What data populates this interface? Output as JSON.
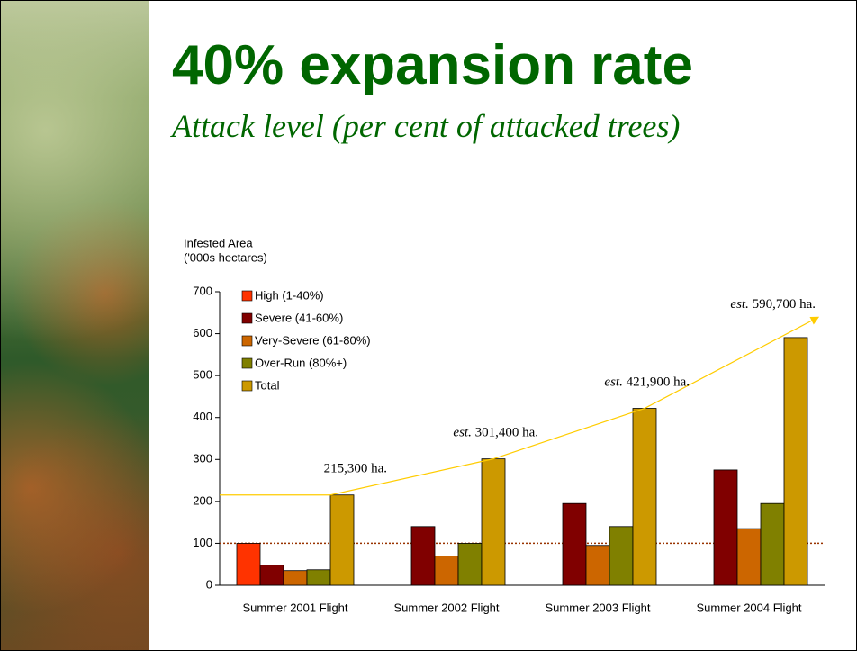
{
  "title": "40% expansion rate",
  "subtitle": "Attack level (per cent of attacked trees)",
  "chart_data": {
    "type": "bar",
    "y_label": [
      "Infested Area",
      "('000s hectares)"
    ],
    "categories": [
      "Summer 2001 Flight",
      "Summer 2002 Flight",
      "Summer 2003 Flight",
      "Summer 2004 Flight"
    ],
    "series": [
      {
        "name": "High (1-40%)",
        "color": "#ff3300",
        "values": [
          100,
          null,
          null,
          null
        ]
      },
      {
        "name": "Severe (41-60%)",
        "color": "#800000",
        "values": [
          48,
          140,
          195,
          275
        ]
      },
      {
        "name": "Very-Severe (61-80%)",
        "color": "#cc6600",
        "values": [
          35,
          70,
          95,
          135
        ]
      },
      {
        "name": "Over-Run (80%+)",
        "color": "#808000",
        "values": [
          37,
          100,
          140,
          195
        ]
      },
      {
        "name": "Total",
        "color": "#cc9900",
        "values": [
          215.3,
          301.4,
          421.9,
          590.7
        ]
      }
    ],
    "annotations": [
      {
        "text": "215,300 ha."
      },
      {
        "prefix": "est.",
        "text": "301,400 ha."
      },
      {
        "prefix": "est.",
        "text": "421,900 ha."
      },
      {
        "prefix": "est.",
        "text": "590,700 ha."
      }
    ],
    "trend_color": "#ffcc00",
    "reference_line": 100,
    "reference_color": "#993300",
    "ylim": [
      0,
      700
    ],
    "yticks": [
      0,
      100,
      200,
      300,
      400,
      500,
      600,
      700
    ],
    "legend": "top-left"
  }
}
